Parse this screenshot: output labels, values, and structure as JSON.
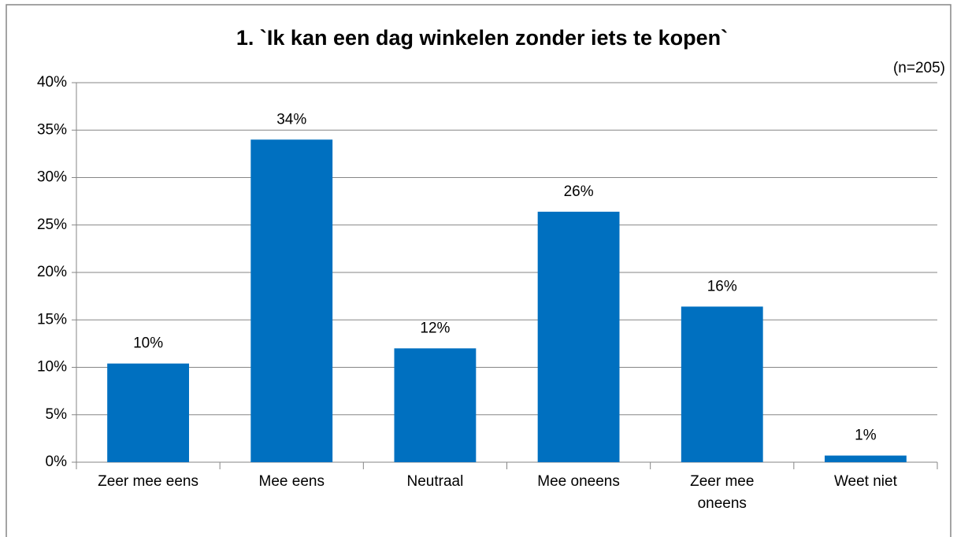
{
  "chart_data": {
    "type": "bar",
    "title": "1. `Ik kan een dag winkelen zonder iets te kopen`",
    "subtitle": "(n=205)",
    "categories": [
      "Zeer mee eens",
      "Mee eens",
      "Neutraal",
      "Mee oneens",
      "Zeer mee oneens",
      "Weet niet"
    ],
    "values": [
      10.4,
      34,
      12,
      26.4,
      16.4,
      0.7
    ],
    "value_labels": [
      "10%",
      "34%",
      "12%",
      "26%",
      "16%",
      "1%"
    ],
    "color": "#0070c0",
    "ylim": [
      0,
      40
    ],
    "yticks": [
      {
        "value": 0,
        "label": "0%"
      },
      {
        "value": 5,
        "label": "5%"
      },
      {
        "value": 10,
        "label": "10%"
      },
      {
        "value": 15,
        "label": "15%"
      },
      {
        "value": 20,
        "label": "20%"
      },
      {
        "value": 25,
        "label": "25%"
      },
      {
        "value": 30,
        "label": "30%"
      },
      {
        "value": 35,
        "label": "35%"
      },
      {
        "value": 40,
        "label": "40%"
      }
    ],
    "grid": true
  }
}
